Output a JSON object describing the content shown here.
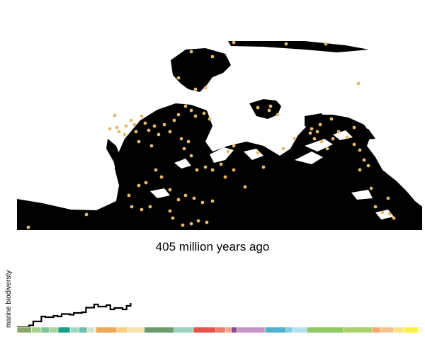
{
  "caption": "405 million years ago",
  "biodiversity_label": "marine biodiversty",
  "colors": {
    "land": "#000000",
    "ocean": "#ffffff",
    "fossil_dot": "#e4b96a",
    "curve": "#000000"
  },
  "timeline_bands": [
    {
      "color": "#8aa86a",
      "span": 1.8
    },
    {
      "color": "#a6cf89",
      "span": 1.2
    },
    {
      "color": "#7dc29a",
      "span": 1.0
    },
    {
      "color": "#a5d6a7",
      "span": 1.1
    },
    {
      "color": "#19a084",
      "span": 1.5
    },
    {
      "color": "#a3d8c0",
      "span": 1.1
    },
    {
      "color": "#6dbcb0",
      "span": 1.0
    },
    {
      "color": "#cde3c9",
      "span": 0.5
    },
    {
      "color": "#b3dcc7",
      "span": 0.3
    },
    {
      "color": "#e3efd8",
      "span": 0.3
    },
    {
      "color": "#eda856",
      "span": 2.6
    },
    {
      "color": "#f6d080",
      "span": 1.3
    },
    {
      "color": "#f8e2b0",
      "span": 2.1
    },
    {
      "color": "#6a9a6e",
      "span": 3.7
    },
    {
      "color": "#9fd0c2",
      "span": 2.4
    },
    {
      "color": "#e75149",
      "span": 2.8
    },
    {
      "color": "#f07967",
      "span": 1.2
    },
    {
      "color": "#f4a790",
      "span": 0.7
    },
    {
      "color": "#8b4c8c",
      "span": 0.7
    },
    {
      "color": "#c394c6",
      "span": 3.5
    },
    {
      "color": "#4fb1cc",
      "span": 2.6
    },
    {
      "color": "#86cde3",
      "span": 0.8
    },
    {
      "color": "#b5e1ee",
      "span": 1.8
    },
    {
      "color": "#8cc760",
      "span": 4.6
    },
    {
      "color": "#a9d26a",
      "span": 3.5
    },
    {
      "color": "#f4a86a",
      "span": 1.0
    },
    {
      "color": "#f5c292",
      "span": 1.7
    },
    {
      "color": "#fbe084",
      "span": 1.2
    },
    {
      "color": "#f7f24a",
      "span": 1.8
    },
    {
      "color": "#f8f89a",
      "span": 0.3
    },
    {
      "color": "#fdf2e0",
      "span": 0.3
    }
  ],
  "diversity_curve": {
    "x_fraction": [
      0,
      0.03,
      0.04,
      0.06,
      0.07,
      0.09,
      0.1,
      0.11,
      0.13,
      0.14,
      0.16,
      0.17,
      0.19,
      0.2,
      0.22,
      0.23,
      0.24,
      0.26,
      0.27,
      0.28
    ],
    "level": [
      0.0,
      0.05,
      0.16,
      0.3,
      0.28,
      0.32,
      0.3,
      0.37,
      0.35,
      0.4,
      0.42,
      0.55,
      0.64,
      0.58,
      0.62,
      0.5,
      0.54,
      0.5,
      0.6,
      0.68
    ]
  }
}
